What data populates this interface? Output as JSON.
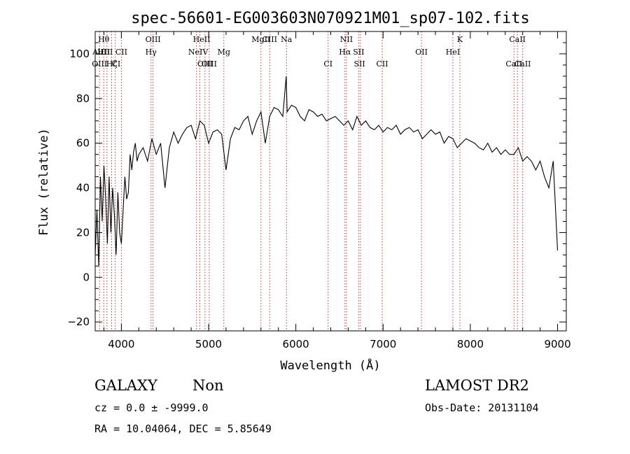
{
  "chart_data": {
    "type": "line",
    "title": "spec-56601-EG003603N070921M01_sp07-102.fits",
    "xlabel": "Wavelength (Å)",
    "ylabel": "Flux (relative)",
    "xlim": [
      3700,
      9100
    ],
    "ylim": [
      -24,
      110
    ],
    "xticks": [
      4000,
      5000,
      6000,
      7000,
      8000,
      9000
    ],
    "yticks": [
      -20,
      0,
      20,
      40,
      60,
      80,
      100
    ],
    "grid": false,
    "series": [
      {
        "x": [
          3700,
          3720,
          3740,
          3760,
          3780,
          3800,
          3820,
          3840,
          3860,
          3880,
          3900,
          3920,
          3940,
          3960,
          3980,
          4000,
          4020,
          4040,
          4060,
          4080,
          4100,
          4120,
          4140,
          4160,
          4180,
          4200,
          4250,
          4300,
          4350,
          4400,
          4450,
          4500,
          4550,
          4600,
          4650,
          4700,
          4750,
          4800,
          4850,
          4900,
          4950,
          5000,
          5050,
          5100,
          5150,
          5200,
          5250,
          5300,
          5350,
          5400,
          5450,
          5500,
          5550,
          5600,
          5650,
          5700,
          5750,
          5800,
          5850,
          5890,
          5900,
          5950,
          6000,
          6050,
          6100,
          6150,
          6200,
          6250,
          6300,
          6350,
          6400,
          6450,
          6500,
          6550,
          6600,
          6650,
          6700,
          6750,
          6800,
          6850,
          6900,
          6950,
          7000,
          7050,
          7100,
          7150,
          7200,
          7250,
          7300,
          7350,
          7400,
          7450,
          7500,
          7550,
          7600,
          7650,
          7700,
          7750,
          7800,
          7850,
          7900,
          7950,
          8000,
          8050,
          8100,
          8150,
          8200,
          8250,
          8300,
          8350,
          8400,
          8450,
          8500,
          8550,
          8600,
          8650,
          8700,
          8750,
          8800,
          8850,
          8900,
          8950,
          9000
        ],
        "y": [
          10,
          30,
          5,
          45,
          25,
          50,
          35,
          15,
          45,
          20,
          40,
          28,
          10,
          38,
          20,
          15,
          30,
          45,
          35,
          38,
          55,
          48,
          56,
          60,
          52,
          55,
          58,
          52,
          62,
          55,
          60,
          40,
          58,
          65,
          60,
          64,
          67,
          68,
          62,
          70,
          68,
          60,
          65,
          66,
          64,
          48,
          62,
          67,
          66,
          70,
          72,
          64,
          70,
          74,
          60,
          72,
          76,
          75,
          72,
          90,
          74,
          77,
          76,
          72,
          70,
          75,
          74,
          72,
          73,
          70,
          71,
          72,
          70,
          68,
          70,
          66,
          72,
          68,
          70,
          67,
          66,
          68,
          65,
          67,
          66,
          68,
          64,
          66,
          67,
          65,
          66,
          62,
          64,
          66,
          64,
          65,
          60,
          63,
          62,
          58,
          60,
          62,
          61,
          60,
          58,
          57,
          60,
          56,
          58,
          55,
          57,
          55,
          55,
          58,
          52,
          54,
          52,
          48,
          52,
          45,
          40,
          52,
          12
        ]
      }
    ],
    "lines": [
      {
        "label": "Hθ",
        "x": 3798,
        "row": 0
      },
      {
        "label": "AlII",
        "x": 3750,
        "row": 1
      },
      {
        "label": "HII",
        "x": 3798,
        "row": 1
      },
      {
        "label": "CII",
        "x": 3835,
        "row": 1
      },
      {
        "label": "OIII",
        "x": 3750,
        "row": 2
      },
      {
        "label": "Hζ",
        "x": 3889,
        "row": 2
      },
      {
        "label": "CI",
        "x": 3940,
        "row": 2
      },
      {
        "label": "CII",
        "x": 4000,
        "row": 1
      },
      {
        "label": "OIII",
        "x": 4363,
        "row": 0
      },
      {
        "label": "Hγ",
        "x": 4340,
        "row": 1
      },
      {
        "label": "HeII",
        "x": 4920,
        "row": 0
      },
      {
        "label": "NeIV",
        "x": 4880,
        "row": 1
      },
      {
        "label": "OIII",
        "x": 4959,
        "row": 2
      },
      {
        "label": "OIII",
        "x": 5007,
        "row": 2
      },
      {
        "label": "Mg",
        "x": 5175,
        "row": 1
      },
      {
        "label": "MgII",
        "x": 5600,
        "row": 0
      },
      {
        "label": "CIII",
        "x": 5700,
        "row": 0
      },
      {
        "label": "Na",
        "x": 5892,
        "row": 0
      },
      {
        "label": "NII",
        "x": 6580,
        "row": 0
      },
      {
        "label": "CI",
        "x": 6370,
        "row": 2
      },
      {
        "label": "Hα",
        "x": 6563,
        "row": 1
      },
      {
        "label": "SII",
        "x": 6720,
        "row": 1
      },
      {
        "label": "SII",
        "x": 6730,
        "row": 2
      },
      {
        "label": "CII",
        "x": 6990,
        "row": 2
      },
      {
        "label": "OII",
        "x": 7440,
        "row": 1
      },
      {
        "label": "K",
        "x": 7880,
        "row": 0
      },
      {
        "label": "HeI",
        "x": 7800,
        "row": 1
      },
      {
        "label": "CaII",
        "x": 8540,
        "row": 0
      },
      {
        "label": "CaII",
        "x": 8500,
        "row": 2
      },
      {
        "label": "CaII",
        "x": 8600,
        "row": 2
      }
    ],
    "marker_lines": [
      3750,
      3798,
      3835,
      3889,
      3930,
      4000,
      4340,
      4363,
      4861,
      4900,
      4959,
      5007,
      5175,
      5600,
      5700,
      5892,
      6370,
      6563,
      6580,
      6720,
      6740,
      6990,
      7440,
      7800,
      7880,
      8500,
      8540,
      8600
    ]
  },
  "info": {
    "class": "GALAXY",
    "subclass": "Non",
    "survey": "LAMOST DR2",
    "cz": "cz = 0.0 ± -9999.0",
    "obsdate": "Obs-Date: 20131104",
    "radec": "RA =  10.04064, DEC =   5.85649"
  }
}
